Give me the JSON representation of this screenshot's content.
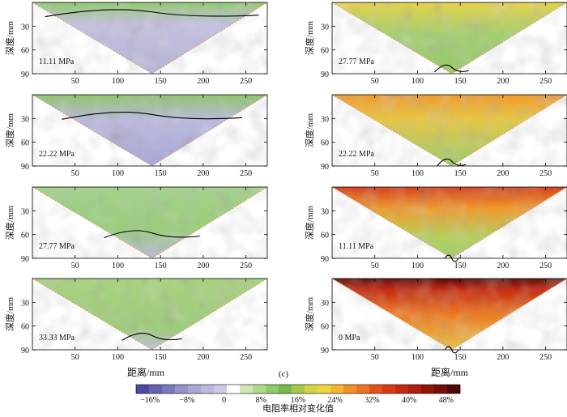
{
  "figure": {
    "subfigure_label": "(c)",
    "x_axis_label": "距离/mm",
    "y_axis_label": "深度/mm",
    "x_ticks": [
      50,
      100,
      150,
      200,
      250
    ],
    "y_ticks": [
      30,
      60,
      90
    ],
    "x_range": [
      0,
      275
    ],
    "y_range": [
      0,
      90
    ]
  },
  "panels_left": [
    {
      "stress_label": "11.11 MPa",
      "interface_depth_center": 12
    },
    {
      "stress_label": "22.22 MPa",
      "interface_depth_center": 25
    },
    {
      "stress_label": "27.77 MPa",
      "interface_depth_center": 58
    },
    {
      "stress_label": "33.33 MPa",
      "interface_depth_center": 72
    }
  ],
  "panels_right": [
    {
      "stress_label": "27.77 MPa",
      "interface_depth_center": 82
    },
    {
      "stress_label": "22.22 MPa",
      "interface_depth_center": 84
    },
    {
      "stress_label": "11.11 MPa",
      "interface_depth_center": 90
    },
    {
      "stress_label": "0 MPa",
      "interface_depth_center": 90
    }
  ],
  "colorbar": {
    "title": "电阻率相对变化值",
    "tick_labels": [
      "−16%",
      "−8%",
      "0",
      "8%",
      "16%",
      "24%",
      "32%",
      "40%",
      "48%"
    ],
    "tick_values": [
      -16,
      -8,
      0,
      8,
      16,
      24,
      32,
      40,
      48
    ],
    "colors": [
      "#4c4aa0",
      "#6462b0",
      "#7b79bd",
      "#9492c9",
      "#a9a7d3",
      "#bcbadc",
      "#cccbe4",
      "#ffffff",
      "#cfe6b0",
      "#b2d98c",
      "#93c96a",
      "#77b84f",
      "#a8c94a",
      "#d2d445",
      "#f0d43c",
      "#f4b632",
      "#f0922a",
      "#e97322",
      "#e2531c",
      "#d83a16",
      "#c52a12",
      "#ad1e0e",
      "#90160b",
      "#701008",
      "#4d0a05"
    ]
  }
}
